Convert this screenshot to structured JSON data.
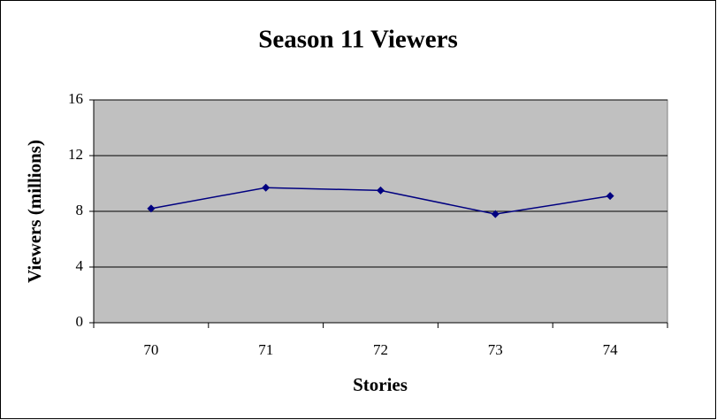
{
  "chart_data": {
    "type": "line",
    "title": "Season 11 Viewers",
    "x_label": "Stories",
    "y_label": "Viewers (millions)",
    "categories": [
      "70",
      "71",
      "72",
      "73",
      "74"
    ],
    "series": [
      {
        "name": "Viewers",
        "color": "#000080",
        "values": [
          8.2,
          9.7,
          9.5,
          7.8,
          9.1
        ]
      }
    ],
    "ylim": [
      0,
      16
    ],
    "yticks": [
      0,
      4,
      8,
      12,
      16
    ],
    "grid": true,
    "plot_background": "#c0c0c0"
  }
}
